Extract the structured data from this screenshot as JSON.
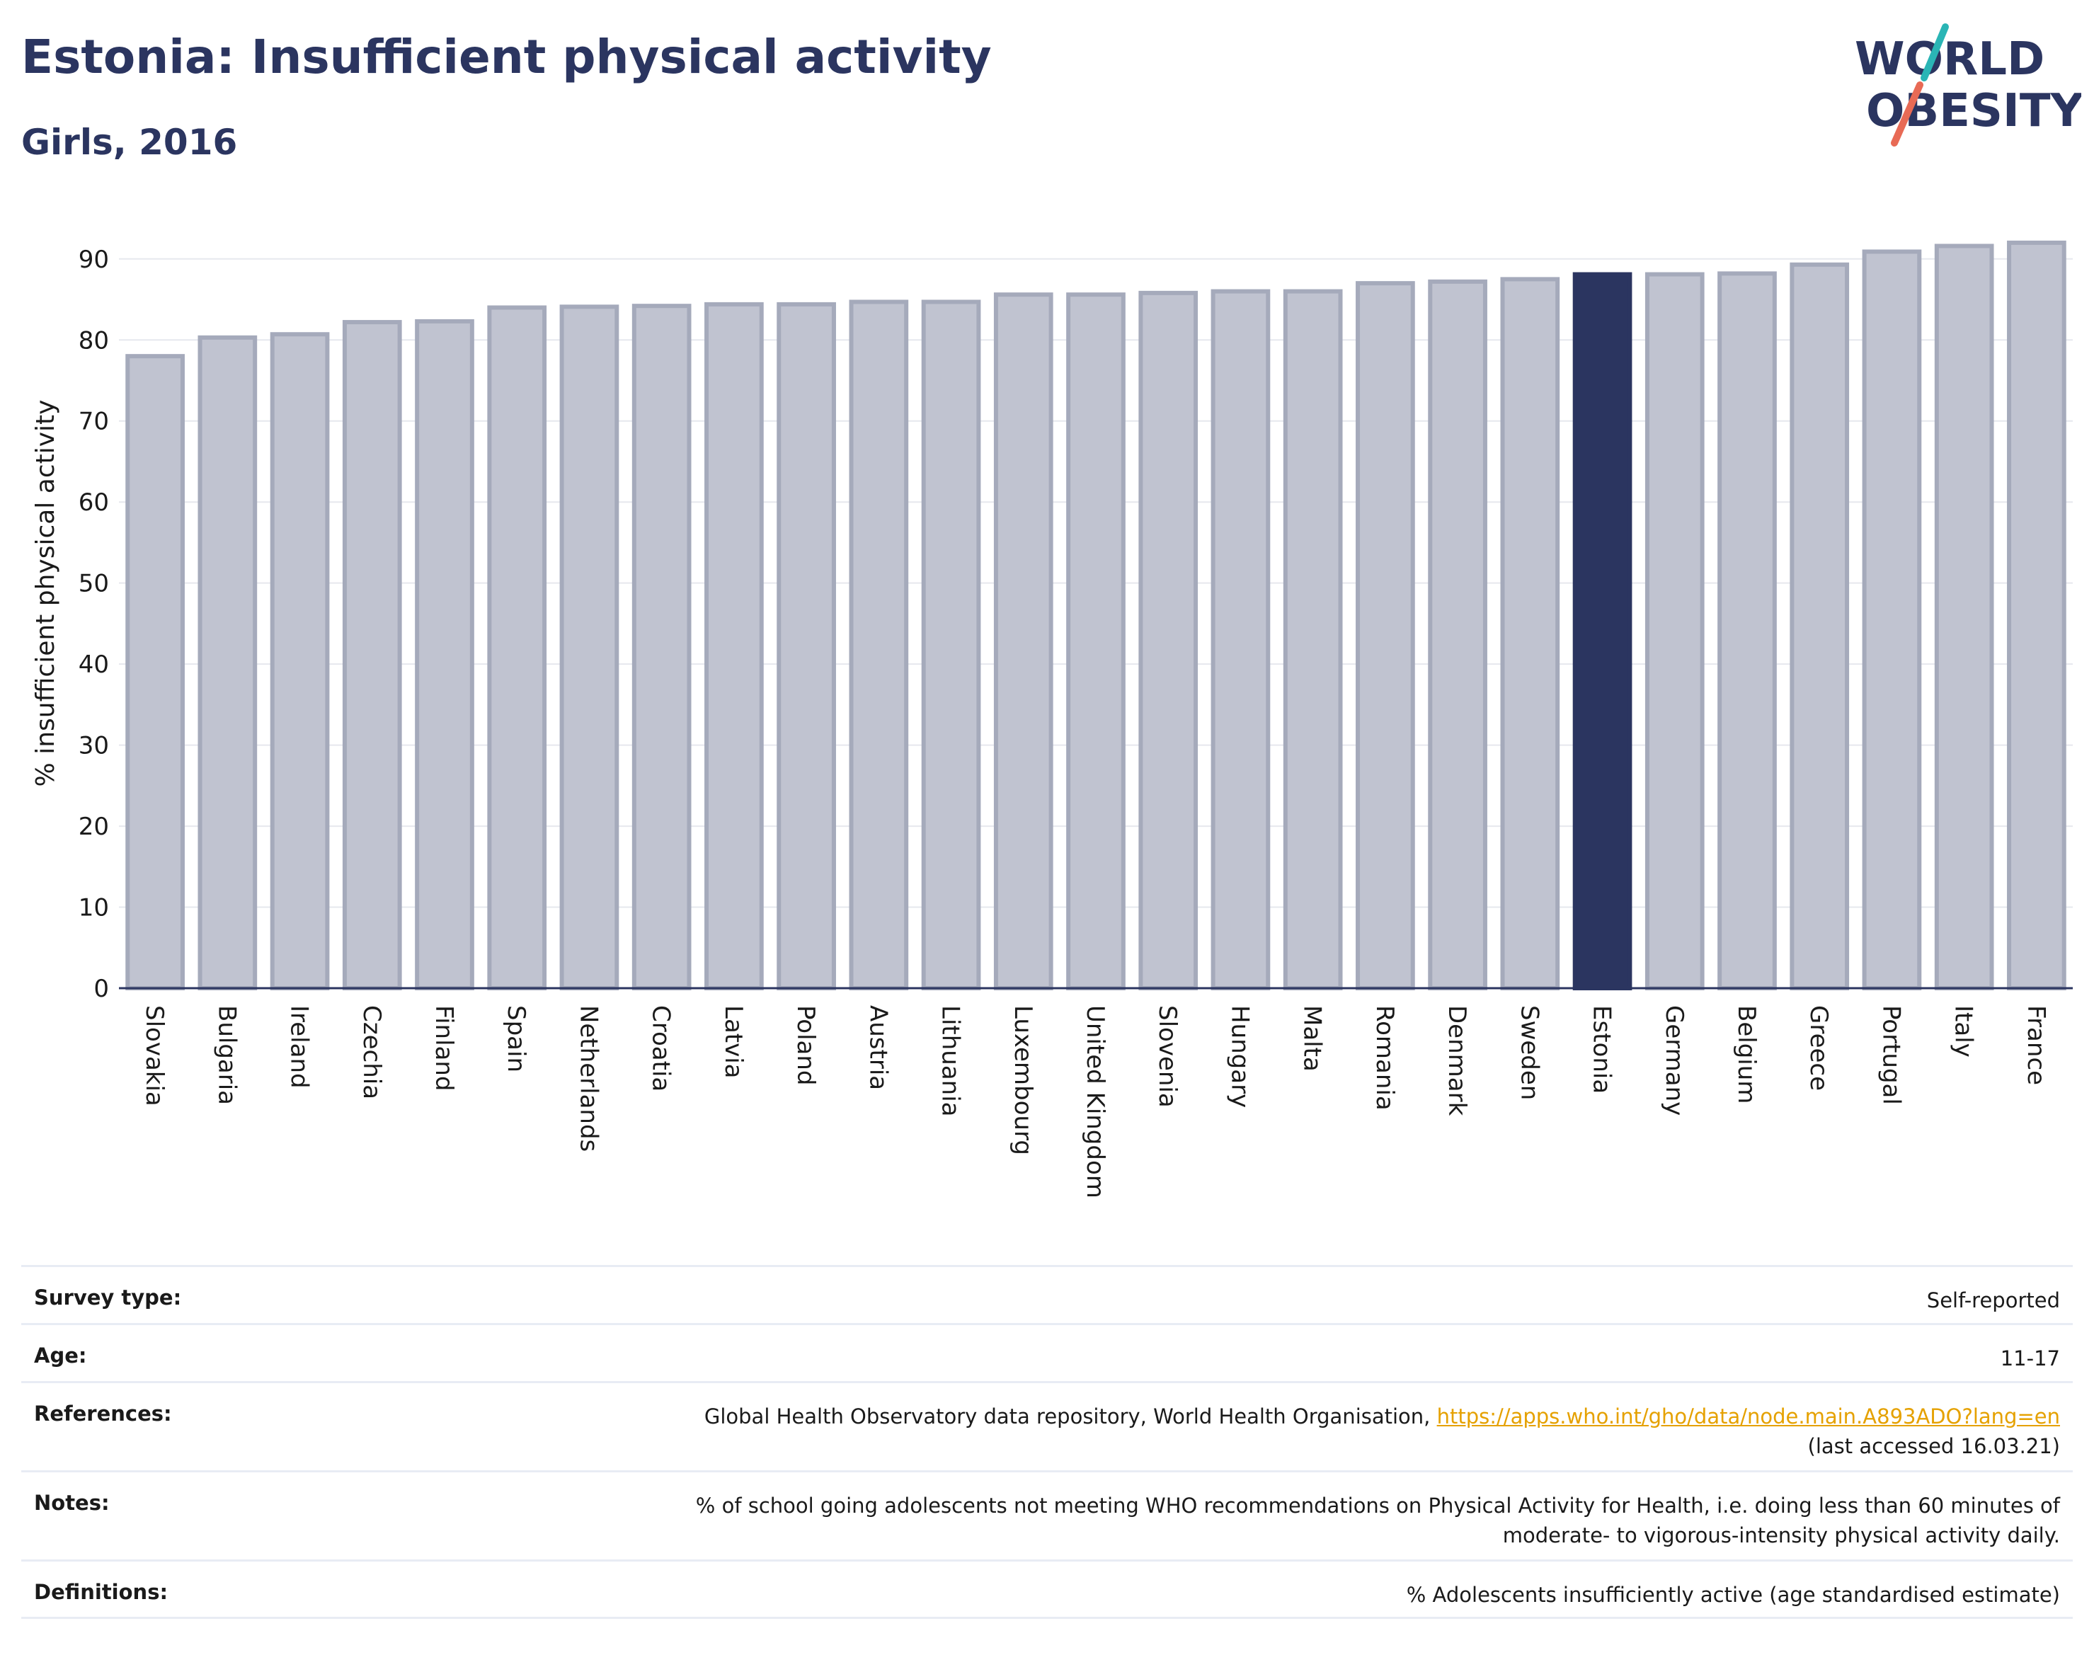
{
  "title": "Estonia: Insufficient physical activity",
  "subtitle": "Girls, 2016",
  "logo": {
    "line1": "WORLD",
    "line2": "OBESITY"
  },
  "chart_data": {
    "type": "bar",
    "ylabel": "% insufficient physical activity",
    "xlabel": "",
    "ylim": [
      0,
      94
    ],
    "yticks": [
      "0",
      "10",
      "20",
      "30",
      "40",
      "50",
      "60",
      "70",
      "80",
      "90"
    ],
    "grid": true,
    "highlight": "Estonia",
    "colors": {
      "default_fill": "#c0c3d0",
      "default_stroke": "#a5aabb",
      "highlight": "#2b3560"
    },
    "categories": [
      "Slovakia",
      "Bulgaria",
      "Ireland",
      "Czechia",
      "Finland",
      "Spain",
      "Netherlands",
      "Croatia",
      "Latvia",
      "Poland",
      "Austria",
      "Lithuania",
      "Luxembourg",
      "United Kingdom",
      "Slovenia",
      "Hungary",
      "Malta",
      "Romania",
      "Denmark",
      "Sweden",
      "Estonia",
      "Germany",
      "Belgium",
      "Greece",
      "Portugal",
      "Italy",
      "France"
    ],
    "values": [
      78.0,
      80.3,
      80.7,
      82.2,
      82.3,
      84.0,
      84.1,
      84.2,
      84.4,
      84.4,
      84.7,
      84.7,
      85.6,
      85.6,
      85.8,
      86.0,
      86.0,
      87.0,
      87.2,
      87.5,
      88.1,
      88.1,
      88.2,
      89.3,
      90.9,
      91.6,
      92.0
    ]
  },
  "info": {
    "survey_type": {
      "label": "Survey type:",
      "value": "Self-reported"
    },
    "age": {
      "label": "Age:",
      "value": "11-17"
    },
    "references": {
      "label": "References:",
      "text": "Global Health Observatory data repository, World Health Organisation,",
      "link": "https://apps.who.int/gho/data/node.main.A893ADO?lang=en",
      "accessed": "(last accessed 16.03.21)"
    },
    "notes": {
      "label": "Notes:",
      "value": "% of school going adolescents not meeting WHO recommendations on Physical Activity for Health, i.e. doing less than 60 minutes of moderate- to vigorous-intensity physical activity daily."
    },
    "definitions": {
      "label": "Definitions:",
      "value": "% Adolescents insufficiently active (age standardised estimate)"
    }
  }
}
